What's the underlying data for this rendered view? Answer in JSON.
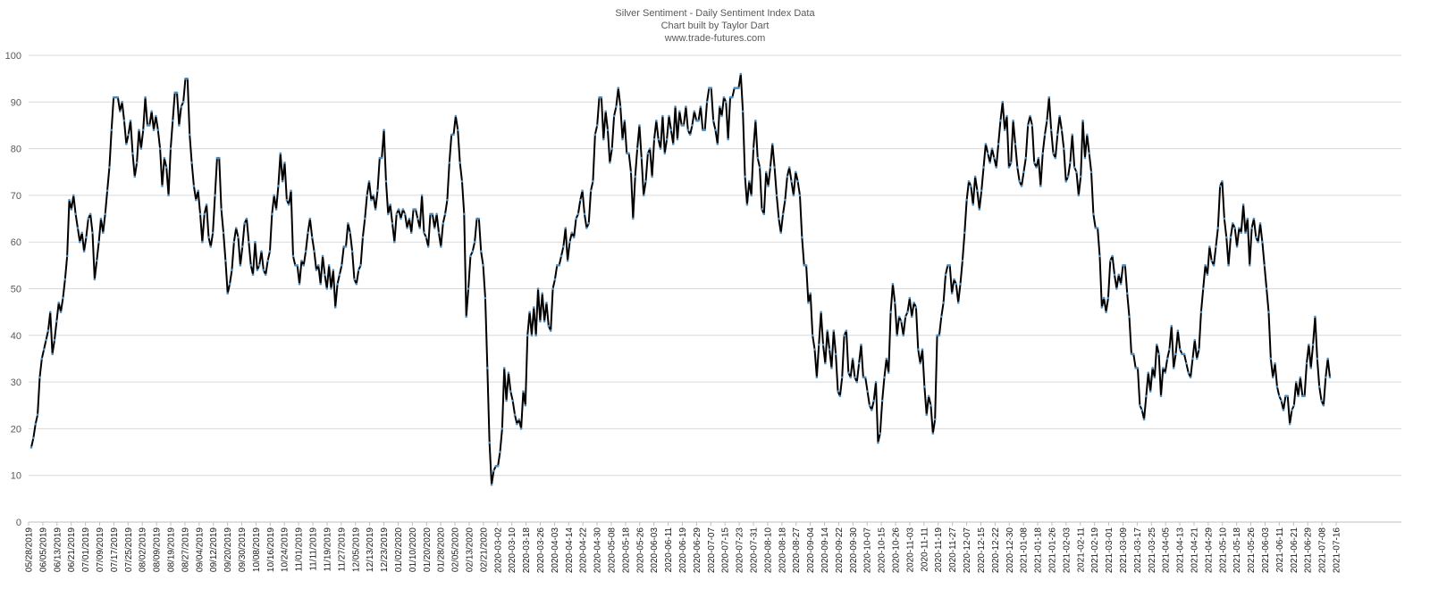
{
  "chart_data": {
    "type": "line",
    "title": "Silver Sentiment - Daily Sentiment Index Data",
    "subtitle": "Chart built by Taylor Dart",
    "source": "www.trade-futures.com",
    "xlabel": "",
    "ylabel": "",
    "ylim": [
      0,
      100
    ],
    "yticks": [
      0,
      10,
      20,
      30,
      40,
      50,
      60,
      70,
      80,
      90,
      100
    ],
    "grid": true,
    "legend": "none",
    "colors": {
      "line": "#000000",
      "marker": "#4a90c8",
      "grid": "#d9d9d9",
      "text": "#595959"
    },
    "x_tick_labels": [
      "05/28/2019",
      "06/05/2019",
      "06/13/2019",
      "06/21/2019",
      "07/01/2019",
      "07/09/2019",
      "07/17/2019",
      "07/25/2019",
      "08/02/2019",
      "08/09/2019",
      "08/19/2019",
      "08/27/2019",
      "09/04/2019",
      "09/12/2019",
      "09/20/2019",
      "09/30/2019",
      "10/08/2019",
      "10/16/2019",
      "10/24/2019",
      "11/01/2019",
      "11/11/2019",
      "11/19/2019",
      "11/27/2019",
      "12/05/2019",
      "12/13/2019",
      "12/23/2019",
      "01/02/2020",
      "01/10/2020",
      "01/20/2020",
      "01/28/2020",
      "02/05/2020",
      "02/13/2020",
      "02/21/2020",
      "2020-03-02",
      "2020-03-10",
      "2020-03-18",
      "2020-03-26",
      "2020-04-03",
      "2020-04-14",
      "2020-04-22",
      "2020-04-30",
      "2020-05-08",
      "2020-05-18",
      "2020-05-26",
      "2020-06-03",
      "2020-06-11",
      "2020-06-19",
      "2020-06-29",
      "2020-07-07",
      "2020-07-15",
      "2020-07-23",
      "2020-07-31",
      "2020-08-10",
      "2020-08-18",
      "2020-08-27",
      "2020-09-04",
      "2020-09-14",
      "2020-09-22",
      "2020-09-30",
      "2020-10-07",
      "2020-10-15",
      "2020-10-26",
      "2020-11-03",
      "2020-11-11",
      "2020-11-19",
      "2020-11-27",
      "2020-12-07",
      "2020-12-15",
      "2020-12-22",
      "2020-12-30",
      "2021-01-08",
      "2021-01-18",
      "2021-01-26",
      "2021-02-03",
      "2021-02-11",
      "2021-02-19",
      "2021-03-01",
      "2021-03-09",
      "2021-03-17",
      "2021-03-25",
      "2021-04-05",
      "2021-04-13",
      "2021-04-21",
      "2021-04-29",
      "2021-05-10",
      "2021-05-18",
      "2021-05-26",
      "2021-06-03",
      "2021-06-11",
      "2021-06-21",
      "2021-06-29",
      "2021-07-08",
      "2021-07-16"
    ],
    "series": [
      {
        "values": [
          16,
          18,
          21,
          23,
          31,
          35,
          37,
          39,
          41,
          45,
          36,
          39,
          43,
          47,
          45,
          48,
          52,
          57,
          69,
          67,
          70,
          66,
          63,
          60,
          62,
          58,
          61,
          65,
          66,
          62,
          52,
          56,
          60,
          65,
          62,
          66,
          71,
          76,
          84,
          91,
          91,
          91,
          88,
          90,
          86,
          81,
          83,
          86,
          79,
          74,
          77,
          84,
          80,
          84,
          91,
          85,
          85,
          88,
          84,
          87,
          84,
          80,
          72,
          78,
          76,
          70,
          80,
          86,
          92,
          92,
          85,
          89,
          90,
          95,
          95,
          83,
          77,
          72,
          69,
          71,
          66,
          60,
          66,
          68,
          61,
          59,
          62,
          70,
          78,
          78,
          67,
          62,
          56,
          49,
          51,
          54,
          60,
          63,
          61,
          55,
          59,
          64,
          65,
          60,
          55,
          53,
          60,
          54,
          55,
          58,
          54,
          53,
          56,
          58,
          66,
          70,
          67,
          72,
          79,
          73,
          77,
          69,
          68,
          71,
          57,
          55,
          55,
          51,
          56,
          55,
          58,
          62,
          65,
          61,
          58,
          54,
          55,
          51,
          57,
          53,
          50,
          55,
          50,
          54,
          46,
          51,
          53,
          55,
          59,
          59,
          64,
          62,
          58,
          52,
          51,
          54,
          55,
          61,
          65,
          70,
          73,
          69,
          70,
          67,
          71,
          78,
          78,
          84,
          73,
          66,
          68,
          64,
          60,
          66,
          67,
          65,
          67,
          66,
          63,
          65,
          62,
          67,
          67,
          65,
          63,
          70,
          62,
          61,
          59,
          66,
          66,
          63,
          66,
          62,
          59,
          64,
          66,
          69,
          77,
          83,
          83,
          87,
          84,
          77,
          73,
          66,
          44,
          50,
          57,
          58,
          60,
          65,
          65,
          58,
          55,
          48,
          33,
          17,
          8,
          11,
          12,
          12,
          15,
          20,
          33,
          26,
          32,
          28,
          26,
          23,
          21,
          22,
          20,
          28,
          25,
          40,
          45,
          40,
          46,
          40,
          50,
          43,
          49,
          43,
          47,
          42,
          41,
          50,
          52,
          55,
          55,
          57,
          59,
          63,
          56,
          60,
          62,
          61,
          65,
          66,
          69,
          71,
          66,
          63,
          64,
          71,
          73,
          83,
          85,
          91,
          91,
          82,
          88,
          84,
          77,
          80,
          87,
          89,
          93,
          89,
          82,
          86,
          79,
          79,
          75,
          65,
          74,
          80,
          85,
          78,
          70,
          73,
          79,
          80,
          74,
          82,
          86,
          82,
          80,
          87,
          79,
          82,
          87,
          84,
          81,
          89,
          82,
          88,
          85,
          85,
          89,
          84,
          83,
          85,
          88,
          86,
          86,
          89,
          84,
          84,
          90,
          93,
          93,
          86,
          84,
          81,
          89,
          87,
          91,
          90,
          82,
          91,
          91,
          93,
          93,
          93,
          96,
          88,
          74,
          68,
          73,
          70,
          80,
          86,
          78,
          76,
          67,
          66,
          75,
          72,
          76,
          81,
          76,
          70,
          65,
          62,
          66,
          69,
          74,
          76,
          73,
          70,
          75,
          73,
          70,
          61,
          55,
          55,
          47,
          49,
          40,
          37,
          31,
          38,
          45,
          38,
          34,
          41,
          37,
          33,
          41,
          36,
          28,
          27,
          31,
          40,
          41,
          32,
          31,
          35,
          31,
          30,
          34,
          38,
          31,
          31,
          28,
          25,
          24,
          26,
          30,
          17,
          19,
          26,
          31,
          35,
          32,
          45,
          51,
          47,
          40,
          44,
          43,
          40,
          44,
          45,
          48,
          44,
          47,
          46,
          37,
          34,
          37,
          29,
          23,
          27,
          25,
          19,
          22,
          40,
          40,
          44,
          47,
          53,
          55,
          55,
          49,
          52,
          51,
          47,
          51,
          56,
          62,
          69,
          73,
          72,
          68,
          74,
          71,
          67,
          71,
          76,
          81,
          79,
          77,
          80,
          78,
          76,
          81,
          86,
          90,
          84,
          87,
          76,
          77,
          86,
          81,
          76,
          73,
          72,
          75,
          78,
          85,
          87,
          85,
          77,
          76,
          78,
          72,
          79,
          83,
          86,
          91,
          84,
          79,
          78,
          83,
          87,
          84,
          80,
          73,
          74,
          77,
          83,
          76,
          75,
          70,
          74,
          86,
          78,
          83,
          79,
          75,
          66,
          63,
          63,
          57,
          46,
          48,
          45,
          48,
          56,
          57,
          53,
          50,
          53,
          51,
          55,
          55,
          49,
          44,
          36,
          36,
          33,
          33,
          25,
          24,
          22,
          27,
          32,
          28,
          33,
          31,
          38,
          36,
          27,
          33,
          32,
          35,
          37,
          42,
          33,
          36,
          41,
          37,
          36,
          36,
          34,
          32,
          31,
          35,
          39,
          35,
          37,
          45,
          50,
          55,
          53,
          59,
          56,
          55,
          59,
          63,
          72,
          73,
          65,
          61,
          55,
          61,
          64,
          63,
          59,
          63,
          62,
          68,
          62,
          65,
          55,
          63,
          65,
          61,
          60,
          64,
          60,
          55,
          50,
          45,
          35,
          31,
          34,
          29,
          27,
          26,
          24,
          27,
          27,
          21,
          24,
          25,
          30,
          27,
          31,
          27,
          27,
          34,
          38,
          33,
          38,
          44,
          35,
          29,
          26,
          25,
          31,
          35,
          31
        ]
      }
    ]
  }
}
